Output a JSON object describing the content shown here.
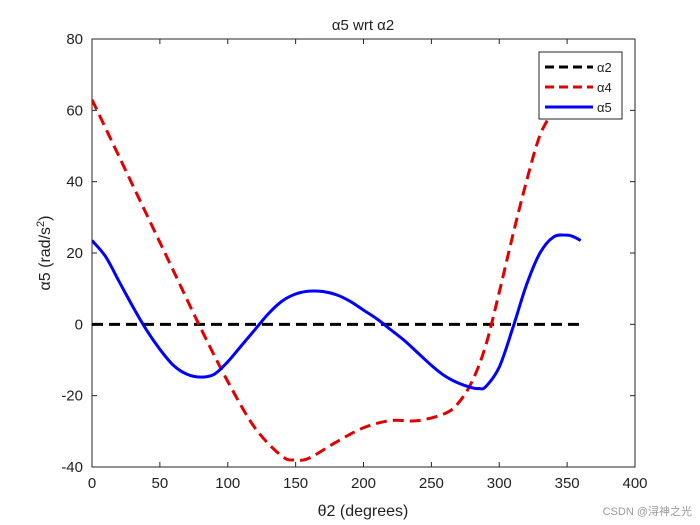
{
  "chart_data": {
    "type": "line",
    "title": "α5 wrt α2",
    "xlabel": "θ2 (degrees)",
    "ylabel_main": "α5 (rad/s",
    "ylabel_sup": "2",
    "ylabel_close": ")",
    "xlim": [
      0,
      400
    ],
    "ylim": [
      -40,
      80
    ],
    "xticks": [
      0,
      50,
      100,
      150,
      200,
      250,
      300,
      350,
      400
    ],
    "yticks": [
      -40,
      -20,
      0,
      20,
      40,
      60,
      80
    ],
    "legend_position": "top-right",
    "series": [
      {
        "name": "α2",
        "color": "#000000",
        "style": "dashed",
        "x": [
          0,
          360
        ],
        "y": [
          0,
          0
        ]
      },
      {
        "name": "α4",
        "color": "#e00000",
        "style": "dashed",
        "x": [
          0,
          20,
          40,
          60,
          80,
          100,
          120,
          140,
          150,
          160,
          180,
          200,
          220,
          240,
          260,
          270,
          280,
          290,
          300,
          310,
          320,
          330,
          340
        ],
        "y": [
          63,
          47,
          31,
          15,
          -1,
          -16,
          -29,
          -37,
          -38,
          -37.5,
          -33,
          -29,
          -27,
          -27,
          -25,
          -22,
          -16,
          -6,
          9,
          25,
          40,
          53,
          60
        ]
      },
      {
        "name": "α5",
        "color": "#0000ff",
        "style": "solid",
        "x": [
          0,
          10,
          20,
          30,
          40,
          50,
          60,
          70,
          80,
          90,
          100,
          110,
          120,
          130,
          140,
          150,
          160,
          170,
          180,
          190,
          200,
          210,
          220,
          230,
          240,
          250,
          260,
          270,
          280,
          285,
          290,
          300,
          310,
          320,
          330,
          340,
          350,
          355,
          360
        ],
        "y": [
          23.5,
          19,
          12,
          5,
          -1.5,
          -7,
          -11.5,
          -14,
          -14.8,
          -14,
          -10.5,
          -6,
          -1.5,
          3,
          6.5,
          8.5,
          9.3,
          9.2,
          8.3,
          6.5,
          4,
          1.5,
          -1.5,
          -4.5,
          -8,
          -11.5,
          -14.5,
          -16.5,
          -17.8,
          -18,
          -17.5,
          -12,
          -1,
          11,
          20,
          24.5,
          25,
          24.5,
          23.5
        ]
      }
    ]
  },
  "watermark": "CSDN @浔神之光"
}
